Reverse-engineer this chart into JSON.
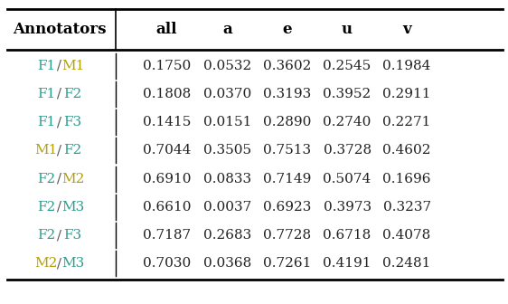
{
  "col_headers": [
    "Annotators",
    "all",
    "a",
    "e",
    "u",
    "v"
  ],
  "rows": [
    [
      "F1 / M1",
      "0.1750",
      "0.0532",
      "0.3602",
      "0.2545",
      "0.1984"
    ],
    [
      "F1 / F2",
      "0.1808",
      "0.0370",
      "0.3193",
      "0.3952",
      "0.2911"
    ],
    [
      "F1 / F3",
      "0.1415",
      "0.0151",
      "0.2890",
      "0.2740",
      "0.2271"
    ],
    [
      "M1 / F2",
      "0.7044",
      "0.3505",
      "0.7513",
      "0.3728",
      "0.4602"
    ],
    [
      "F2 / M2",
      "0.6910",
      "0.0833",
      "0.7149",
      "0.5074",
      "0.1696"
    ],
    [
      "F2 / M3",
      "0.6610",
      "0.0037",
      "0.6923",
      "0.3973",
      "0.3237"
    ],
    [
      "F2 / F3",
      "0.7187",
      "0.2683",
      "0.7728",
      "0.6718",
      "0.4078"
    ],
    [
      "M2 / M3",
      "0.7030",
      "0.0368",
      "0.7261",
      "0.4191",
      "0.2481"
    ]
  ],
  "annotator_colors": {
    "F1": "#2A9D8F",
    "F2": "#2A9D8F",
    "F3": "#2A9D8F",
    "M1": "#B5A000",
    "M2": "#B5A000",
    "M3": "#2A9D8F"
  },
  "slash_color": "#555555",
  "header_color": "#000000",
  "data_color": "#222222",
  "bg_color": "#FFFFFF",
  "font_size": 11,
  "header_font_size": 12
}
